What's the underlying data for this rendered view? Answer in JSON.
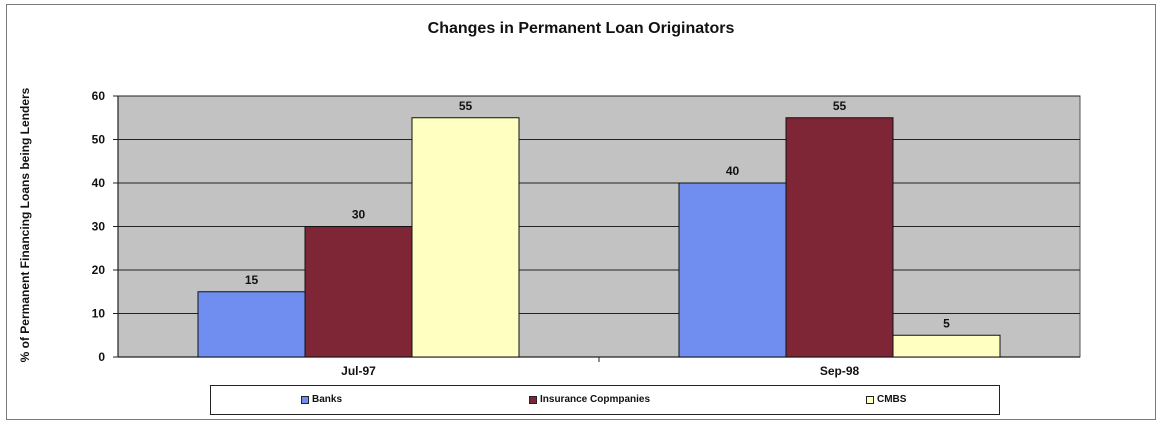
{
  "chart_data": {
    "type": "bar",
    "title": "Changes in Permanent Loan Originators",
    "ylabel": "% of Permanent Financing Loans being Lenders",
    "xlabel": "",
    "categories": [
      "Jul-97",
      "Sep-98"
    ],
    "series": [
      {
        "name": "Banks",
        "values": [
          15,
          40
        ],
        "color": "#6f8ef0"
      },
      {
        "name": "Insurance Copmpanies",
        "values": [
          30,
          55
        ],
        "color": "#7e2636"
      },
      {
        "name": "CMBS",
        "values": [
          55,
          5
        ],
        "color": "#ffffc2"
      }
    ],
    "ylim": [
      0,
      60
    ],
    "yticks": [
      "0",
      "10",
      "20",
      "30",
      "40",
      "50",
      "60"
    ],
    "data_labels": [
      [
        "15",
        "40"
      ],
      [
        "30",
        "55"
      ],
      [
        "55",
        "5"
      ]
    ],
    "plot_background": "#c2c2c2",
    "grid": true,
    "legend_position": "bottom"
  }
}
